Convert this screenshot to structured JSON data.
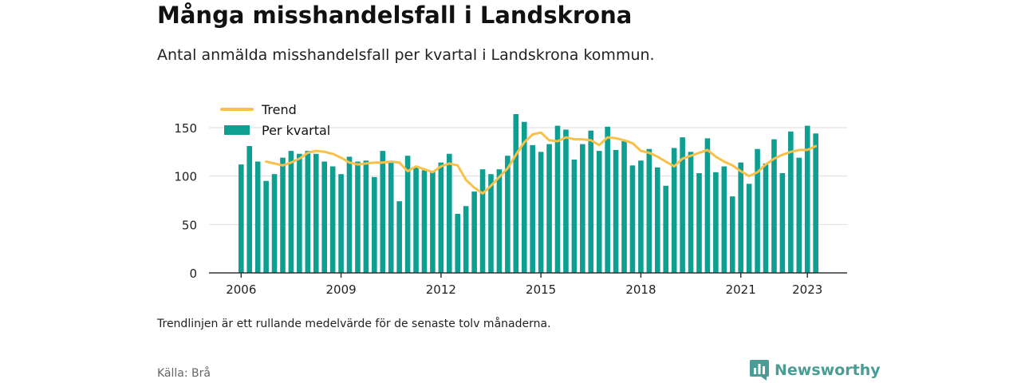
{
  "title": "Många misshandelsfall i Landskrona",
  "subtitle": "Antal anmälda misshandelsfall per kvartal i Landskrona kommun.",
  "note": "Trendlinjen är ett rullande medelvärde för de senaste tolv månaderna.",
  "source": "Källa: Brå",
  "logo": {
    "text": "Newsworthy",
    "icon": "newsworthy-logo-icon",
    "color": "#4a9c94"
  },
  "colors": {
    "bar": "#0f9e92",
    "trend": "#f9c04a",
    "grid": "#dddddd",
    "axis": "#333333"
  },
  "chart_data": {
    "type": "bar",
    "x_unit": "quarter",
    "start_quarter": "2006 Q1",
    "end_quarter": "2023 Q2",
    "ylim": [
      0,
      170
    ],
    "yticks": [
      0,
      50,
      100,
      150
    ],
    "xticks": [
      "2006",
      "2009",
      "2012",
      "2015",
      "2018",
      "2021",
      "2023"
    ],
    "legend_position": "top-left",
    "grid": true,
    "series": [
      {
        "name": "Per kvartal",
        "type": "bar",
        "values": [
          112,
          131,
          115,
          95,
          102,
          119,
          126,
          123,
          126,
          123,
          115,
          110,
          102,
          120,
          115,
          116,
          99,
          126,
          114,
          74,
          121,
          110,
          106,
          105,
          114,
          123,
          61,
          69,
          84,
          107,
          102,
          107,
          121,
          164,
          156,
          132,
          125,
          133,
          152,
          148,
          117,
          133,
          147,
          126,
          151,
          127,
          136,
          111,
          116,
          128,
          109,
          90,
          129,
          140,
          125,
          103,
          139,
          104,
          110,
          79,
          114,
          92,
          128,
          113,
          138,
          103,
          146,
          119,
          152,
          144
        ]
      },
      {
        "name": "Trend",
        "type": "line",
        "values": [
          null,
          null,
          null,
          115,
          113,
          111,
          114,
          118,
          124,
          126,
          125,
          123,
          119,
          114,
          112,
          113,
          114,
          114,
          115,
          114,
          105,
          110,
          107,
          104,
          110,
          113,
          111,
          96,
          88,
          82,
          90,
          99,
          108,
          122,
          135,
          143,
          145,
          137,
          136,
          140,
          138,
          138,
          137,
          132,
          140,
          139,
          137,
          134,
          126,
          124,
          120,
          115,
          110,
          118,
          121,
          124,
          127,
          120,
          115,
          111,
          105,
          100,
          104,
          112,
          118,
          122,
          125,
          127,
          127,
          131
        ]
      }
    ]
  }
}
